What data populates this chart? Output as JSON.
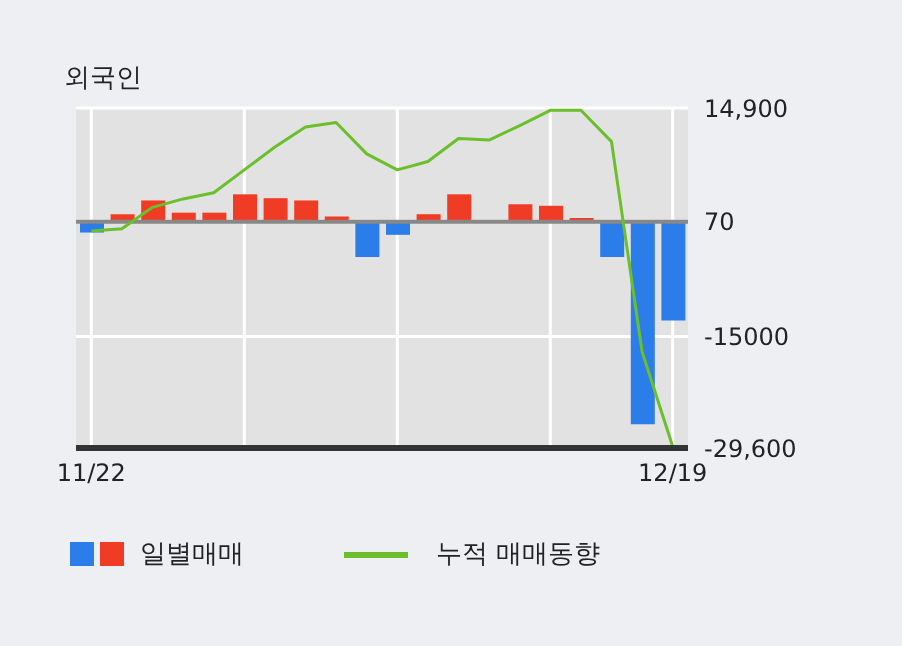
{
  "chart_data": {
    "type": "bar",
    "title": "외국인",
    "categories": [
      "11/22",
      null,
      null,
      null,
      null,
      null,
      null,
      null,
      null,
      null,
      null,
      null,
      null,
      null,
      null,
      null,
      null,
      null,
      null,
      "12/19"
    ],
    "series": [
      {
        "name": "일별매매",
        "colors": [
          "#2b7de9",
          "#f03c24",
          "#f03c24",
          "#f03c24",
          "#f03c24",
          "#f03c24",
          "#f03c24",
          "#f03c24",
          "#f03c24",
          "#2b7de9",
          "#2b7de9",
          "#f03c24",
          "#f03c24",
          "#f03c24",
          "#f03c24",
          "#f03c24",
          "#f03c24",
          "#2b7de9",
          "#2b7de9",
          "#2b7de9"
        ],
        "values": [
          -1400,
          1000,
          2800,
          1200,
          1200,
          3600,
          3100,
          2800,
          700,
          -4600,
          -1700,
          1000,
          3600,
          0,
          2300,
          2100,
          500,
          -4600,
          -26500,
          -12900
        ]
      },
      {
        "name": "누적 매매동향",
        "type": "line",
        "color": "#6abf2a",
        "values": [
          -1200,
          -900,
          1900,
          3000,
          3800,
          6800,
          9800,
          12400,
          13000,
          8900,
          6800,
          7900,
          10900,
          10700,
          12600,
          14600,
          14600,
          10500,
          -17000,
          -29400
        ]
      }
    ],
    "ylim": [
      -29600,
      14900
    ],
    "yticks": [
      {
        "value": 14900,
        "label": "14,900"
      },
      70,
      -15000,
      {
        "value": -29600,
        "label": "-29,600"
      }
    ],
    "ref_lines": [
      {
        "axis": "y",
        "value": 0,
        "color": "#888888"
      }
    ],
    "grid": true,
    "legend": "bottom left"
  }
}
